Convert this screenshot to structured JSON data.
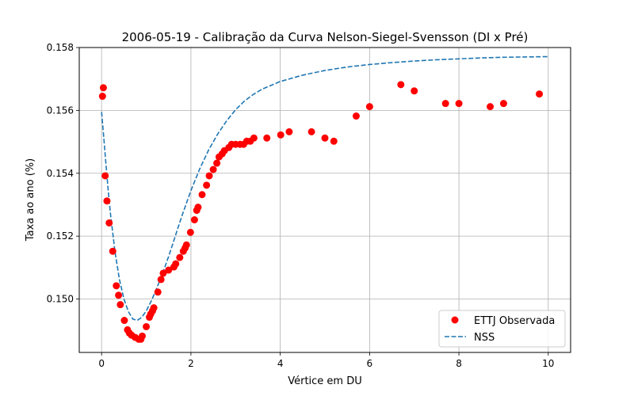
{
  "chart_data": {
    "type": "scatter",
    "title": "2006-05-19 - Calibração da Curva Nelson-Siegel-Svensson (DI x Pré)",
    "xlabel": "Vértice em DU",
    "ylabel": "Taxa ao ano (%)",
    "xlim": [
      -0.5,
      10.5
    ],
    "ylim": [
      0.1483,
      0.158
    ],
    "xticks": [
      0,
      2,
      4,
      6,
      8,
      10
    ],
    "xtick_labels": [
      "0",
      "2",
      "4",
      "6",
      "8",
      "10"
    ],
    "yticks": [
      0.15,
      0.152,
      0.154,
      0.156,
      0.158
    ],
    "ytick_labels": [
      "0.150",
      "0.152",
      "0.154",
      "0.156",
      "0.158"
    ],
    "grid": true,
    "legend_position": "bottom-right",
    "series": [
      {
        "name": "ETTJ Observada",
        "type": "scatter",
        "color": "#ff0000",
        "x": [
          0.02,
          0.04,
          0.08,
          0.12,
          0.17,
          0.25,
          0.33,
          0.38,
          0.42,
          0.51,
          0.58,
          0.62,
          0.67,
          0.75,
          0.83,
          0.88,
          0.91,
          1.0,
          1.07,
          1.1,
          1.14,
          1.17,
          1.26,
          1.33,
          1.38,
          1.5,
          1.62,
          1.66,
          1.75,
          1.83,
          1.87,
          1.9,
          1.99,
          2.08,
          2.13,
          2.16,
          2.25,
          2.35,
          2.41,
          2.5,
          2.58,
          2.63,
          2.7,
          2.75,
          2.85,
          2.91,
          3.0,
          3.1,
          3.18,
          3.25,
          3.33,
          3.41,
          3.7,
          4.01,
          4.2,
          4.7,
          5.0,
          5.2,
          5.7,
          6.0,
          6.7,
          7.0,
          7.7,
          8.0,
          8.7,
          9.0,
          9.8
        ],
        "y": [
          0.15645,
          0.15672,
          0.15392,
          0.15312,
          0.15242,
          0.15152,
          0.15042,
          0.15012,
          0.14982,
          0.14932,
          0.14902,
          0.14892,
          0.14885,
          0.14878,
          0.14872,
          0.14872,
          0.14882,
          0.14912,
          0.14942,
          0.14952,
          0.14962,
          0.14972,
          0.15022,
          0.15062,
          0.15082,
          0.15092,
          0.15102,
          0.15112,
          0.15132,
          0.15152,
          0.15162,
          0.15172,
          0.15212,
          0.15252,
          0.15282,
          0.15292,
          0.15332,
          0.15362,
          0.15392,
          0.15412,
          0.15432,
          0.15452,
          0.15462,
          0.15472,
          0.15482,
          0.15492,
          0.15492,
          0.15492,
          0.15492,
          0.15502,
          0.15502,
          0.15512,
          0.15512,
          0.15522,
          0.15532,
          0.15532,
          0.15512,
          0.15502,
          0.15582,
          0.15612,
          0.15682,
          0.15662,
          0.15622,
          0.15622,
          0.15612,
          0.15622,
          0.15652
        ]
      },
      {
        "name": "NSS",
        "type": "line",
        "style": "dashed",
        "color": "#1f77b4",
        "x": [
          0.0,
          0.05,
          0.1,
          0.15,
          0.2,
          0.3,
          0.4,
          0.5,
          0.6,
          0.7,
          0.8,
          0.9,
          1.0,
          1.1,
          1.2,
          1.3,
          1.4,
          1.5,
          1.6,
          1.7,
          1.8,
          1.9,
          2.0,
          2.2,
          2.4,
          2.6,
          2.8,
          3.0,
          3.2,
          3.4,
          3.6,
          3.8,
          4.0,
          4.5,
          5.0,
          5.5,
          6.0,
          6.5,
          7.0,
          7.5,
          8.0,
          8.5,
          9.0,
          9.5,
          10.0
        ],
        "y": [
          0.15595,
          0.15512,
          0.15425,
          0.15342,
          0.1527,
          0.1515,
          0.15062,
          0.15,
          0.1496,
          0.14936,
          0.14932,
          0.14942,
          0.14962,
          0.1499,
          0.15022,
          0.15058,
          0.15095,
          0.15135,
          0.15178,
          0.15222,
          0.15265,
          0.15305,
          0.15345,
          0.15415,
          0.15475,
          0.15525,
          0.15567,
          0.15602,
          0.1563,
          0.15651,
          0.15668,
          0.1568,
          0.15692,
          0.15712,
          0.15727,
          0.15738,
          0.15746,
          0.15752,
          0.15757,
          0.15761,
          0.15764,
          0.15767,
          0.15769,
          0.1577,
          0.15771
        ]
      }
    ]
  }
}
